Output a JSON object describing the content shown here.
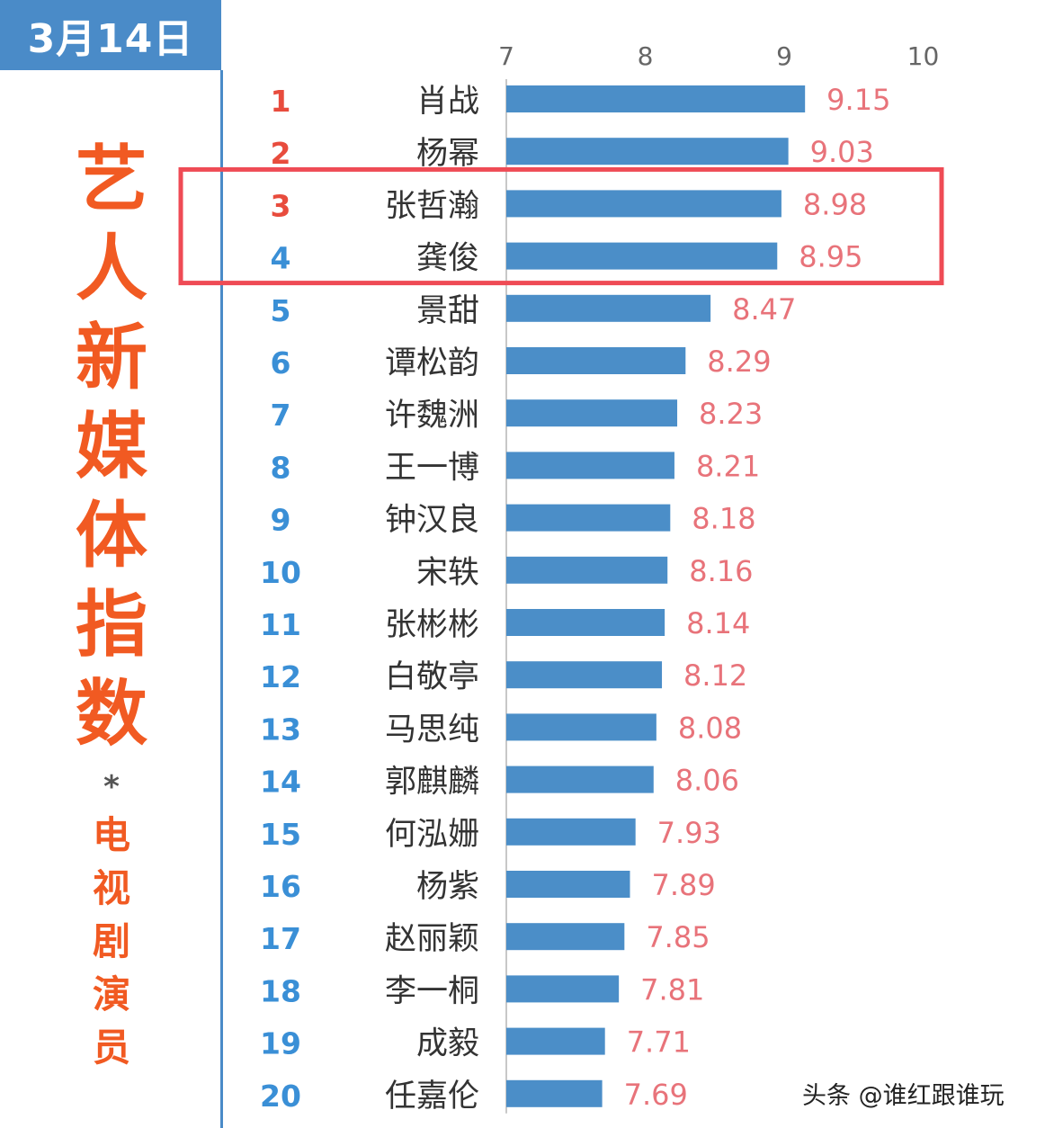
{
  "date_label": "3月14日",
  "title_chars": [
    "艺",
    "人",
    "新",
    "媒",
    "体",
    "指",
    "数"
  ],
  "title_mark": "*",
  "subtitle_chars": [
    "电",
    "视",
    "剧",
    "演",
    "员"
  ],
  "watermark": "头条 @谁红跟谁玩",
  "colors": {
    "bar": "#4b8ec8",
    "value_label": "#e8737a",
    "rank_top": "#e84c3d",
    "rank_rest": "#3a8fd6",
    "title": "#f15a22",
    "highlight_box": "#ef4b55"
  },
  "chart_data": {
    "type": "bar",
    "orientation": "horizontal",
    "title": "",
    "xlabel": "",
    "ylabel": "",
    "xlim": [
      7,
      10
    ],
    "x_ticks": [
      7,
      8,
      9,
      10
    ],
    "grid": false,
    "highlighted_ranks": [
      3,
      4
    ],
    "ranks": [
      1,
      2,
      3,
      4,
      5,
      6,
      7,
      8,
      9,
      10,
      11,
      12,
      13,
      14,
      15,
      16,
      17,
      18,
      19,
      20
    ],
    "categories": [
      "肖战",
      "杨幂",
      "张哲瀚",
      "龚俊",
      "景甜",
      "谭松韵",
      "许魏洲",
      "王一博",
      "钟汉良",
      "宋轶",
      "张彬彬",
      "白敬亭",
      "马思纯",
      "郭麒麟",
      "何泓姗",
      "杨紫",
      "赵丽颖",
      "李一桐",
      "成毅",
      "任嘉伦"
    ],
    "values": [
      9.15,
      9.03,
      8.98,
      8.95,
      8.47,
      8.29,
      8.23,
      8.21,
      8.18,
      8.16,
      8.14,
      8.12,
      8.08,
      8.06,
      7.93,
      7.89,
      7.85,
      7.81,
      7.71,
      7.69
    ]
  }
}
